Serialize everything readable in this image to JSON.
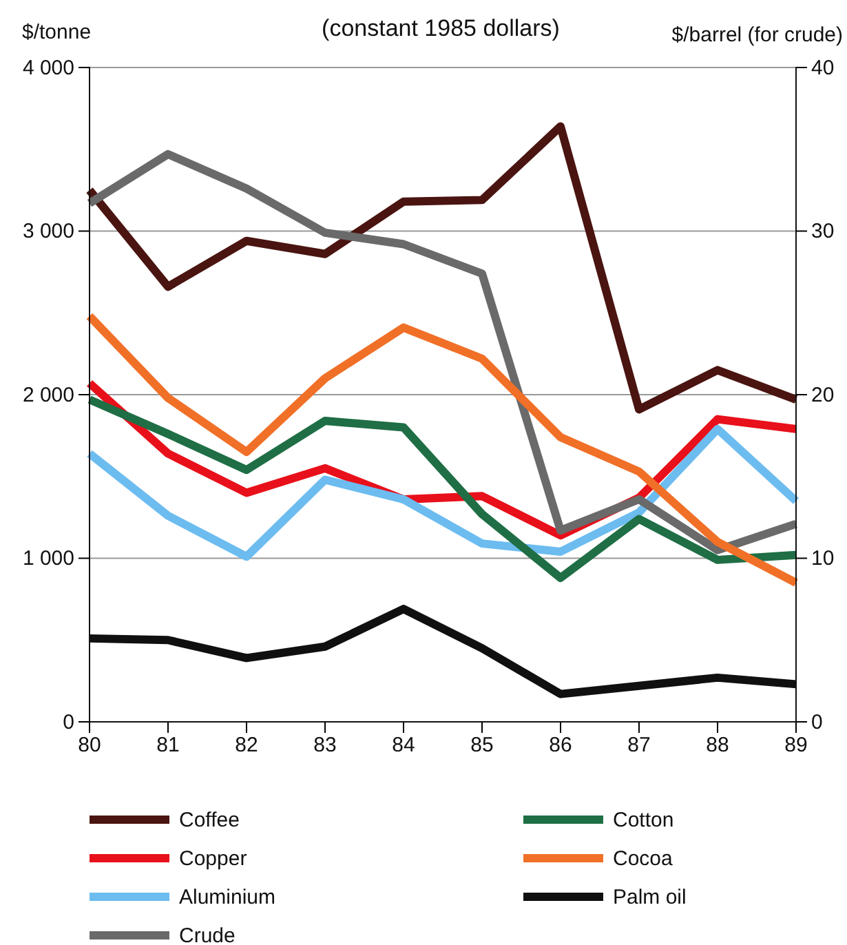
{
  "chart_data": {
    "type": "line",
    "subtitle": "(constant 1985 dollars)",
    "ylabel": "$/tonne",
    "y2label": "$/barrel (for crude)",
    "x": [
      80,
      81,
      82,
      83,
      84,
      85,
      86,
      87,
      88,
      89
    ],
    "xlim": [
      80,
      89
    ],
    "xticks": [
      80,
      81,
      82,
      83,
      84,
      85,
      86,
      87,
      88,
      89
    ],
    "ylim": [
      0,
      4000
    ],
    "yticks": [
      0,
      {
        "value": 1000,
        "label": "1 000"
      },
      {
        "value": 2000,
        "label": "2 000"
      },
      {
        "value": 3000,
        "label": "3 000"
      },
      {
        "value": 4000,
        "label": "4 000"
      }
    ],
    "y2lim": [
      0,
      40
    ],
    "y2ticks": [
      0,
      10,
      20,
      30,
      40
    ],
    "grid": "y",
    "legend": "bottom",
    "line_style": "solid",
    "series": [
      {
        "name": "Coffee",
        "color": "#4a1410",
        "values": [
          3250,
          2660,
          2940,
          2860,
          3180,
          3190,
          3640,
          1910,
          2150,
          1970
        ]
      },
      {
        "name": "Copper",
        "color": "#e8101a",
        "values": [
          2070,
          1640,
          1400,
          1550,
          1360,
          1380,
          1140,
          1370,
          1850,
          1790
        ]
      },
      {
        "name": "Aluminium",
        "color": "#6cbcf0",
        "values": [
          1640,
          1260,
          1010,
          1480,
          1360,
          1090,
          1040,
          1280,
          1790,
          1350
        ]
      },
      {
        "name": "Crude",
        "color": "#6a6a6a",
        "axis": "y2",
        "values": [
          31.7,
          34.7,
          32.6,
          29.9,
          29.2,
          27.4,
          11.7,
          13.6,
          10.5,
          12.1
        ]
      },
      {
        "name": "Cotton",
        "color": "#1f6e45",
        "values": [
          1970,
          1760,
          1540,
          1840,
          1800,
          1270,
          880,
          1240,
          990,
          1020
        ]
      },
      {
        "name": "Cocoa",
        "color": "#f07028",
        "values": [
          2480,
          1980,
          1650,
          2100,
          2410,
          2220,
          1740,
          1530,
          1100,
          850
        ]
      },
      {
        "name": "Palm oil",
        "color": "#101010",
        "values": [
          510,
          500,
          390,
          460,
          690,
          450,
          170,
          220,
          270,
          230
        ]
      }
    ]
  }
}
